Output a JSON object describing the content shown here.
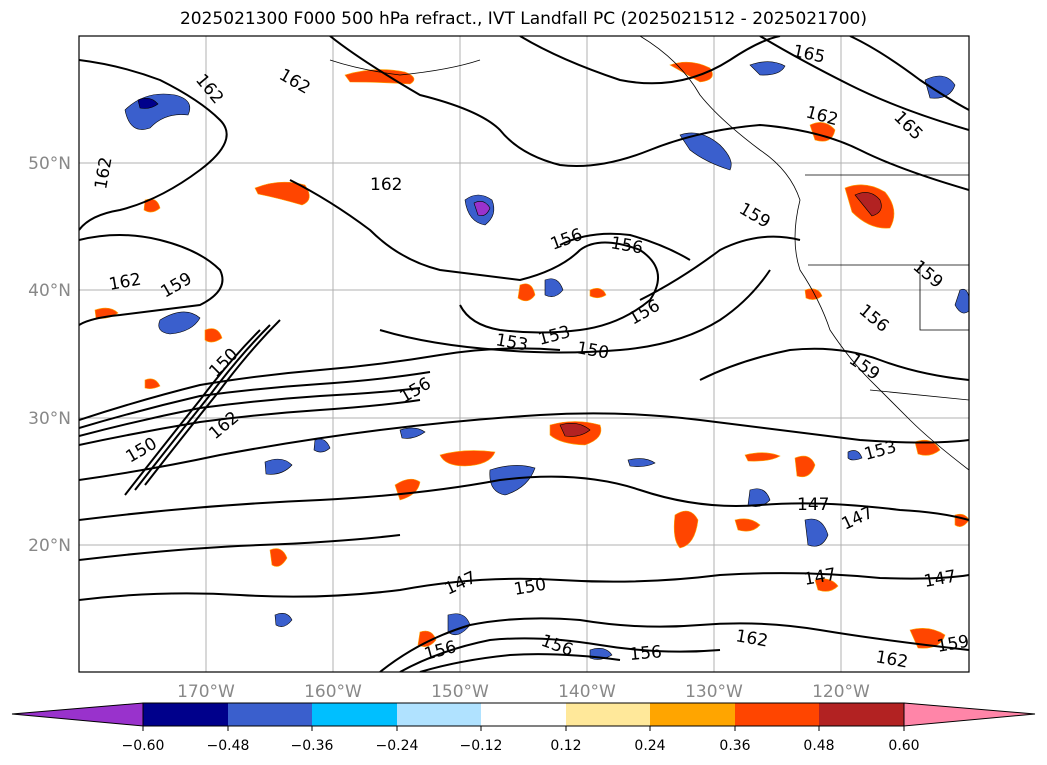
{
  "title": "2025021300 F000 500 hPa refract., IVT Landfall PC (2025021512 - 2025021700)",
  "map": {
    "lat_labels": [
      "50°N",
      "40°N",
      "30°N",
      "20°N"
    ],
    "lon_labels": [
      "170°W",
      "160°W",
      "150°W",
      "140°W",
      "130°W",
      "120°W"
    ],
    "contour_labels": [
      "165",
      "165",
      "162",
      "162",
      "162",
      "162",
      "162",
      "162",
      "162",
      "162",
      "162",
      "159",
      "159",
      "159",
      "159",
      "159",
      "156",
      "156",
      "156",
      "156",
      "156",
      "156",
      "156",
      "153",
      "153",
      "153",
      "150",
      "150",
      "150",
      "147",
      "147",
      "147",
      "147",
      "147",
      "150",
      "156"
    ]
  },
  "colorbar": {
    "ticks": [
      "−0.60",
      "−0.48",
      "−0.36",
      "−0.24",
      "−0.12",
      "0.12",
      "0.24",
      "0.36",
      "0.48",
      "0.60"
    ],
    "colors": [
      "#9932cc",
      "#00008b",
      "#3a5fcd",
      "#00bfff",
      "#b0e2ff",
      "#ffffff",
      "#ffe89a",
      "#ffa500",
      "#ff4500",
      "#b22222",
      "#ff85a8"
    ]
  }
}
